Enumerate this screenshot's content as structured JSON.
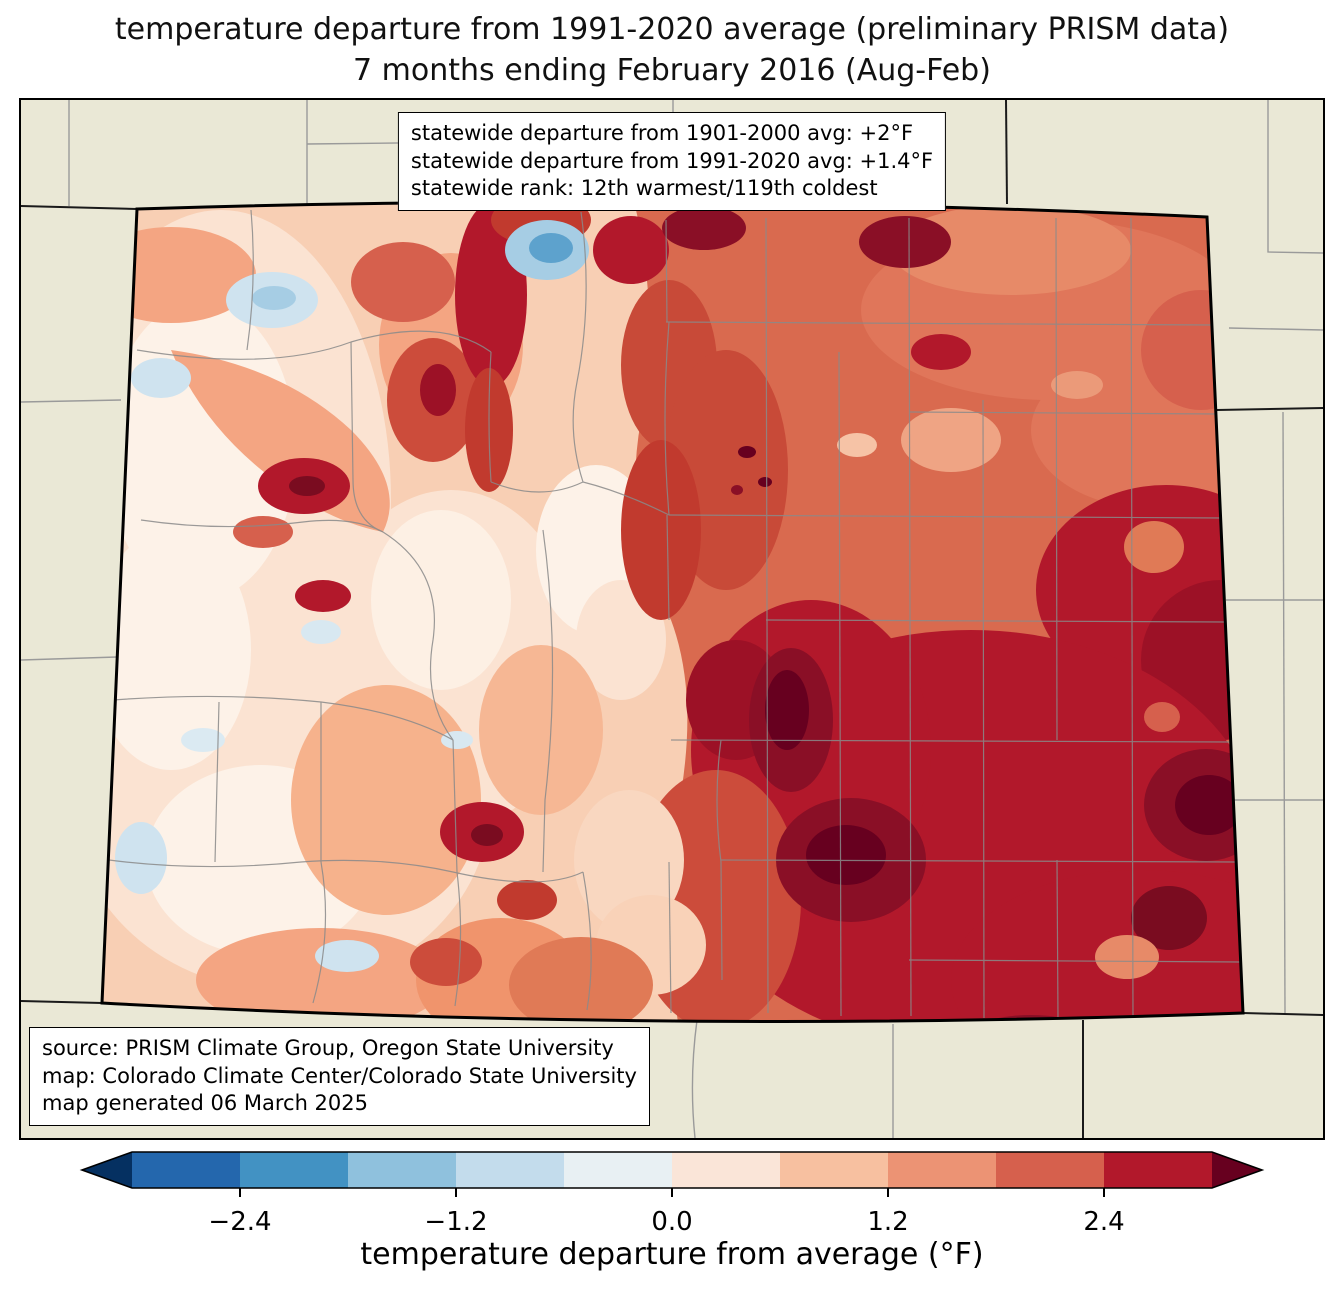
{
  "title": {
    "line1": "temperature departure from 1991-2020 average (preliminary PRISM data)",
    "line2": "7 months ending February 2016 (Aug-Feb)"
  },
  "stats_box": {
    "lines": [
      "statewide departure from 1901-2000 avg: +2°F",
      "statewide departure from 1991-2020 avg: +1.4°F",
      "statewide rank: 12th warmest/119th coldest"
    ]
  },
  "source_box": {
    "lines": [
      "source: PRISM Climate Group, Oregon State University",
      "map: Colorado Climate Center/Colorado State University",
      "map generated 06 March 2025"
    ]
  },
  "colorbar": {
    "label": "temperature departure from average (°F)",
    "ticks": [
      "−2.4",
      "−1.2",
      "0.0",
      "1.2",
      "2.4"
    ],
    "tick_values": [
      -2.4,
      -1.2,
      0.0,
      1.2,
      2.4
    ],
    "range": [
      -3.0,
      3.0
    ],
    "segment_colors": [
      "#2467ad",
      "#4292c3",
      "#8fc1dd",
      "#c3dcec",
      "#e8f0f3",
      "#fae5d8",
      "#f7c0a0",
      "#ec9374",
      "#d6604d",
      "#b2182b"
    ],
    "arrow_left_color": "#053061",
    "arrow_right_color": "#67001f"
  },
  "map": {
    "state": "Colorado",
    "background_color": "#eae8d6",
    "county_line_color": "#8a8a8a",
    "state_border_color": "#000000"
  }
}
